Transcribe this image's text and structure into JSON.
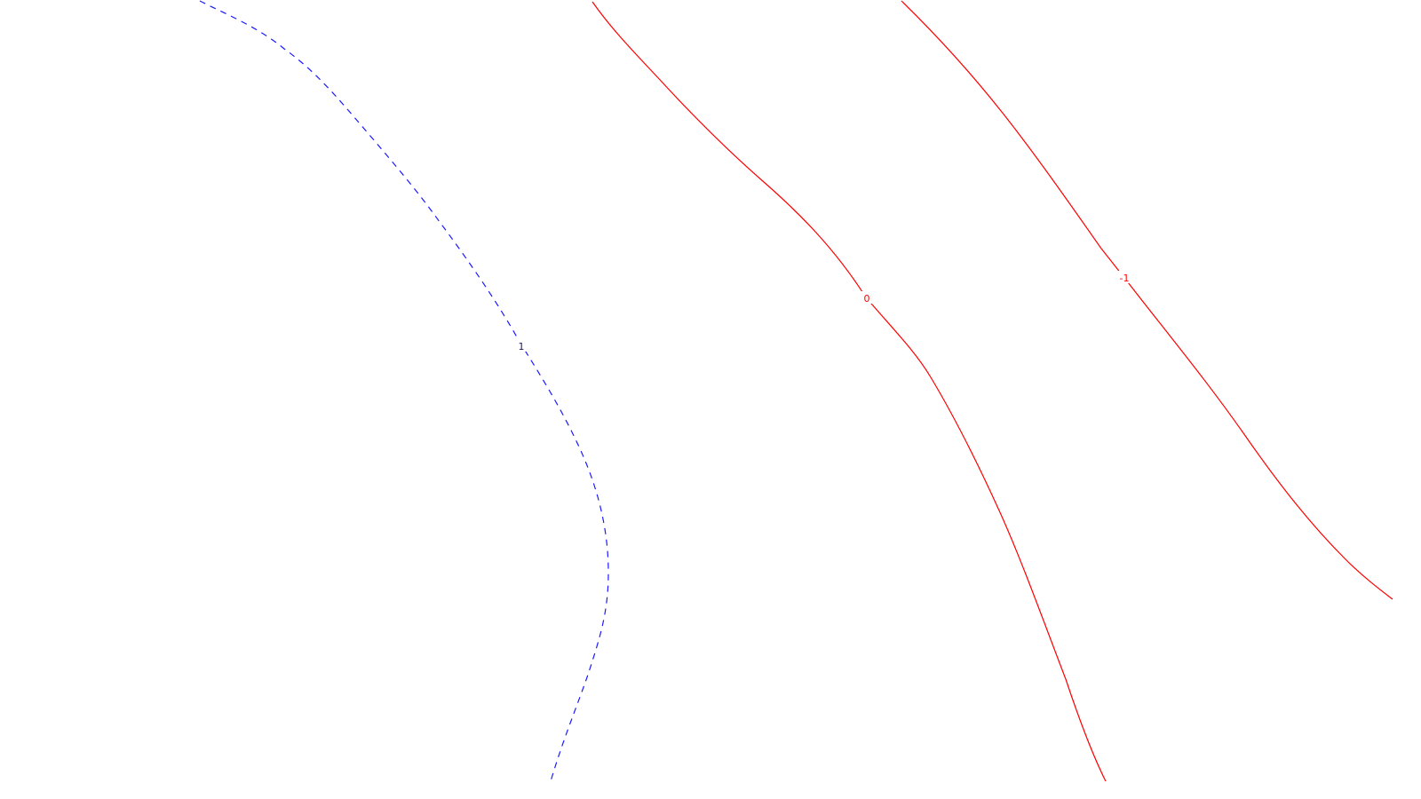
{
  "map": {
    "background_color": "#ffffff",
    "contours": [
      {
        "id": "contour-1",
        "label": "1",
        "color": "#1a1aff",
        "label_color": "#1a1a66",
        "style": "dashed"
      },
      {
        "id": "contour-0",
        "label": "0",
        "color": "#ff0000",
        "label_color": "#ff0000",
        "style": "solid"
      },
      {
        "id": "contour-minus-1",
        "label": "-1",
        "color": "#ff0000",
        "label_color": "#ff0000",
        "style": "solid"
      }
    ]
  }
}
